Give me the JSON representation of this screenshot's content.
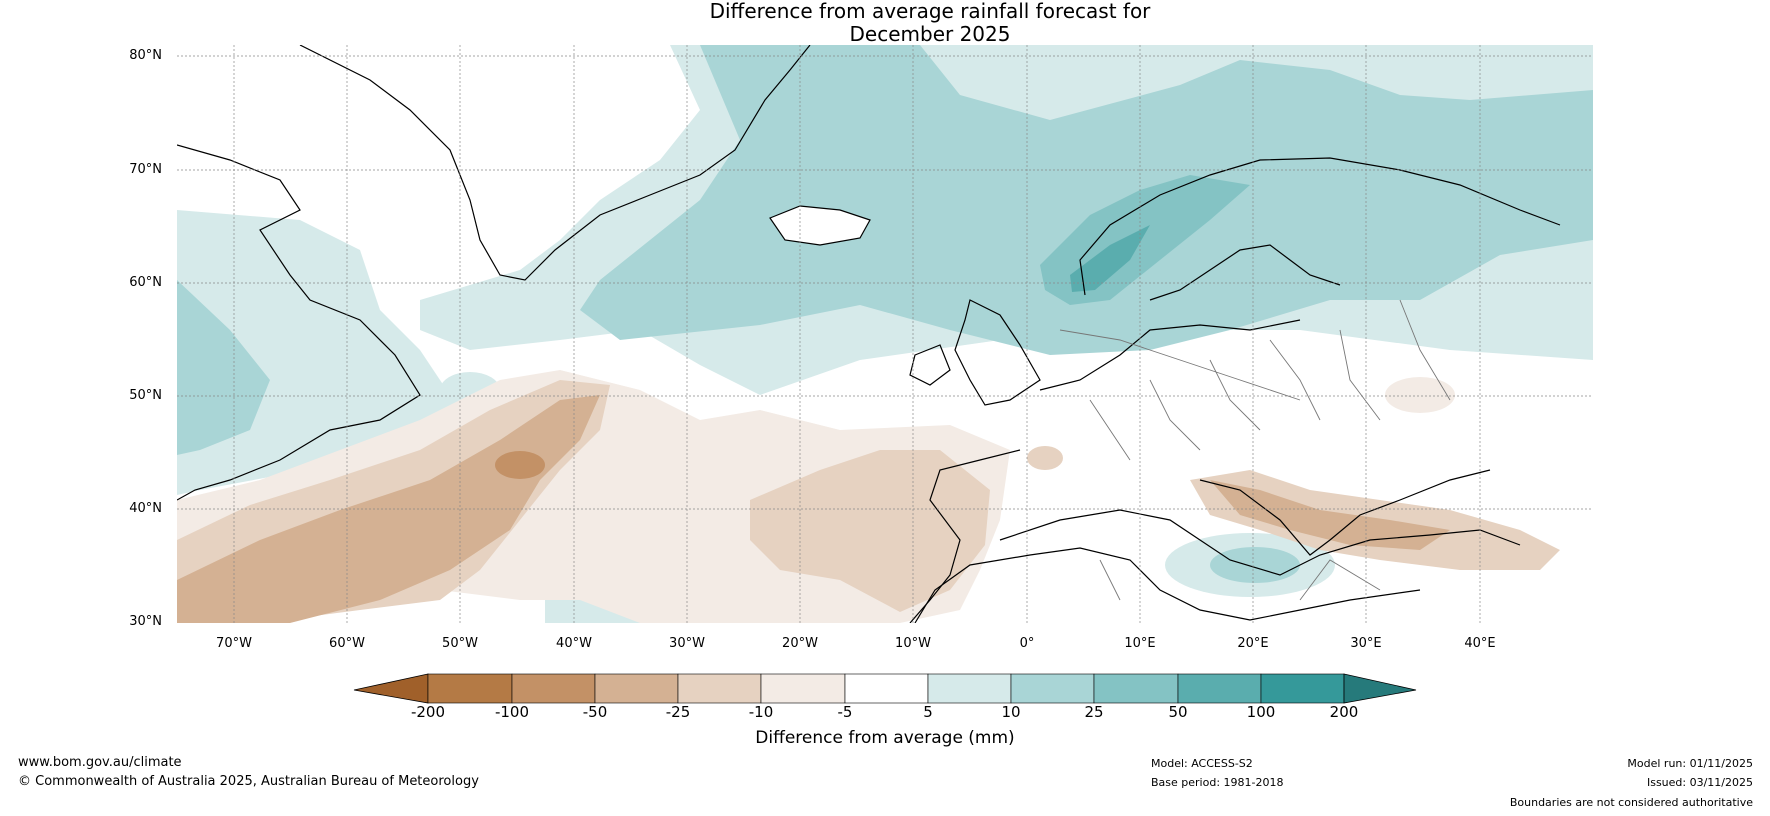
{
  "title_line1": "Difference from average rainfall forecast for",
  "title_line2": "December 2025",
  "lat_labels": [
    "80°N",
    "70°N",
    "60°N",
    "50°N",
    "40°N",
    "30°N"
  ],
  "lon_labels": [
    "70°W",
    "60°W",
    "50°W",
    "40°W",
    "30°W",
    "20°W",
    "10°W",
    "0°",
    "10°E",
    "20°E",
    "30°E",
    "40°E"
  ],
  "colorbar": {
    "ticks": [
      "-200",
      "-100",
      "-50",
      "-25",
      "-10",
      "-5",
      "5",
      "10",
      "25",
      "50",
      "100",
      "200"
    ],
    "colors": [
      "#a0602a",
      "#b47a45",
      "#c39166",
      "#d4b193",
      "#e6d2c1",
      "#f3ebe5",
      "#ffffff",
      "#d6eaea",
      "#a9d5d6",
      "#84c3c4",
      "#5aadae",
      "#35999a",
      "#267a7b"
    ],
    "label": "Difference from average (mm)"
  },
  "footer": {
    "website": "www.bom.gov.au/climate",
    "copyright": "© Commonwealth of Australia 2025, Australian Bureau of Meteorology",
    "model": "Model: ACCESS-S2",
    "base_period": "Base period: 1981-2018",
    "model_run": "Model run: 01/11/2025",
    "issued": "Issued: 03/11/2025",
    "disclaimer": "Boundaries are not considered authoritative"
  }
}
